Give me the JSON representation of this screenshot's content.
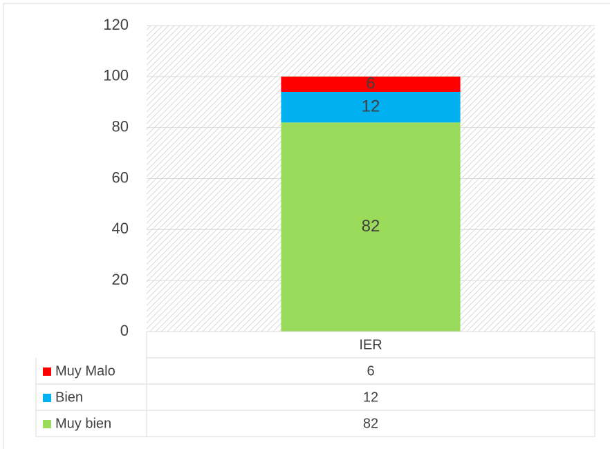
{
  "chart_data": {
    "type": "stacked_bar",
    "categories": [
      "IER"
    ],
    "series": [
      {
        "name": "Muy bien",
        "color": "#9bdb5c",
        "values": [
          82
        ]
      },
      {
        "name": "Bien",
        "color": "#00b0f0",
        "values": [
          12
        ]
      },
      {
        "name": "Muy Malo",
        "color": "#ff0000",
        "values": [
          6
        ]
      }
    ],
    "ylim": [
      0,
      120
    ],
    "yticks": [
      0,
      20,
      40,
      60,
      80,
      100,
      120
    ],
    "grid": true,
    "data_table": true
  }
}
